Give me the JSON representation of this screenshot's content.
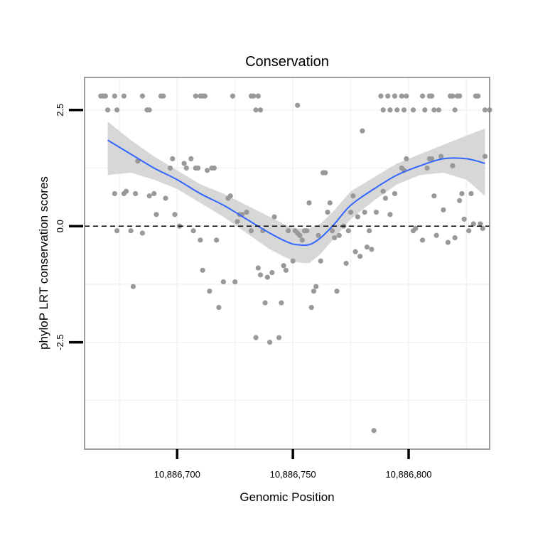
{
  "chart_data": {
    "type": "scatter",
    "title": "Conservation",
    "xlabel": "Genomic Position",
    "ylabel": "phyloP LRT conservation scores",
    "xlim": [
      10886660,
      10886835
    ],
    "ylim": [
      -4.8,
      3.2
    ],
    "x_ticks": [
      10886700,
      10886750,
      10886800
    ],
    "x_tick_labels": [
      "10,886,700",
      "10,886,750",
      "10,886,800"
    ],
    "y_ticks": [
      2.5,
      0.0,
      -2.5
    ],
    "y_tick_labels": [
      "2.5",
      "0.0",
      "-2.5"
    ],
    "reference_line": {
      "y": 0,
      "style": "dashed"
    },
    "grid": true,
    "colors": {
      "points": "#999999",
      "smooth_line": "#3366ff",
      "ribbon": "#d3d3d3",
      "border": "#7f7f7f"
    },
    "points": [
      [
        10886667,
        2.8
      ],
      [
        10886668,
        2.8
      ],
      [
        10886669,
        2.8
      ],
      [
        10886670,
        2.5
      ],
      [
        10886673,
        2.8
      ],
      [
        10886674,
        2.5
      ],
      [
        10886677,
        2.8
      ],
      [
        10886685,
        2.8
      ],
      [
        10886687,
        2.5
      ],
      [
        10886688,
        2.5
      ],
      [
        10886693,
        2.8
      ],
      [
        10886694,
        2.8
      ],
      [
        10886708,
        2.8
      ],
      [
        10886710,
        2.8
      ],
      [
        10886711,
        2.8
      ],
      [
        10886712,
        2.8
      ],
      [
        10886724,
        2.8
      ],
      [
        10886732,
        2.8
      ],
      [
        10886733,
        2.8
      ],
      [
        10886734,
        2.5
      ],
      [
        10886735,
        2.8
      ],
      [
        10886736,
        2.5
      ],
      [
        10886752,
        2.6
      ],
      [
        10886788,
        2.8
      ],
      [
        10886789,
        2.5
      ],
      [
        10886791,
        2.8
      ],
      [
        10886792,
        2.5
      ],
      [
        10886794,
        2.8
      ],
      [
        10886795,
        2.5
      ],
      [
        10886797,
        2.8
      ],
      [
        10886798,
        2.5
      ],
      [
        10886799,
        2.8
      ],
      [
        10886802,
        2.5
      ],
      [
        10886806,
        2.8
      ],
      [
        10886807,
        2.5
      ],
      [
        10886809,
        2.8
      ],
      [
        10886810,
        2.8
      ],
      [
        10886811,
        2.5
      ],
      [
        10886813,
        2.5
      ],
      [
        10886818,
        2.8
      ],
      [
        10886819,
        2.8
      ],
      [
        10886820,
        2.5
      ],
      [
        10886821,
        2.8
      ],
      [
        10886822,
        2.8
      ],
      [
        10886829,
        2.8
      ],
      [
        10886830,
        2.8
      ],
      [
        10886833,
        2.5
      ],
      [
        10886835,
        2.5
      ],
      [
        10886673,
        0.7
      ],
      [
        10886674,
        -0.1
      ],
      [
        10886677,
        0.7
      ],
      [
        10886678,
        0.75
      ],
      [
        10886680,
        -0.1
      ],
      [
        10886681,
        -1.3
      ],
      [
        10886682,
        0.7
      ],
      [
        10886683,
        1.4
      ],
      [
        10886685,
        -0.15
      ],
      [
        10886688,
        0.65
      ],
      [
        10886690,
        0.7
      ],
      [
        10886691,
        0.25
      ],
      [
        10886695,
        0.6
      ],
      [
        10886697,
        1.25
      ],
      [
        10886698,
        1.45
      ],
      [
        10886699,
        0.25
      ],
      [
        10886701,
        0.0
      ],
      [
        10886703,
        1.35
      ],
      [
        10886704,
        1.25
      ],
      [
        10886706,
        1.45
      ],
      [
        10886707,
        -0.1
      ],
      [
        10886708,
        1.25
      ],
      [
        10886709,
        1.25
      ],
      [
        10886710,
        -0.3
      ],
      [
        10886711,
        -0.95
      ],
      [
        10886713,
        1.2
      ],
      [
        10886714,
        -1.4
      ],
      [
        10886715,
        1.25
      ],
      [
        10886716,
        1.25
      ],
      [
        10886717,
        -0.3
      ],
      [
        10886718,
        -1.75
      ],
      [
        10886720,
        -1.2
      ],
      [
        10886722,
        0.6
      ],
      [
        10886723,
        0.65
      ],
      [
        10886725,
        -1.2
      ],
      [
        10886726,
        0.1
      ],
      [
        10886727,
        0.25
      ],
      [
        10886728,
        0.25
      ],
      [
        10886730,
        0.3
      ],
      [
        10886732,
        -0.1
      ],
      [
        10886734,
        -2.4
      ],
      [
        10886735,
        -0.9
      ],
      [
        10886736,
        -1.05
      ],
      [
        10886737,
        -0.1
      ],
      [
        10886738,
        -1.65
      ],
      [
        10886739,
        -1.1
      ],
      [
        10886740,
        -2.5
      ],
      [
        10886741,
        -1.0
      ],
      [
        10886742,
        0.2
      ],
      [
        10886744,
        -2.4
      ],
      [
        10886745,
        -1.65
      ],
      [
        10886746,
        -0.85
      ],
      [
        10886747,
        -0.95
      ],
      [
        10886748,
        -0.1
      ],
      [
        10886750,
        -0.75
      ],
      [
        10886751,
        -0.1
      ],
      [
        10886752,
        -0.15
      ],
      [
        10886753,
        -0.2
      ],
      [
        10886754,
        -0.3
      ],
      [
        10886755,
        -0.1
      ],
      [
        10886756,
        -0.1
      ],
      [
        10886757,
        0.5
      ],
      [
        10886758,
        -1.75
      ],
      [
        10886759,
        -1.4
      ],
      [
        10886760,
        -1.3
      ],
      [
        10886761,
        -0.2
      ],
      [
        10886762,
        -0.75
      ],
      [
        10886763,
        1.15
      ],
      [
        10886764,
        1.15
      ],
      [
        10886765,
        0.3
      ],
      [
        10886766,
        0.5
      ],
      [
        10886767,
        -0.1
      ],
      [
        10886768,
        -0.25
      ],
      [
        10886769,
        -1.4
      ],
      [
        10886770,
        -0.2
      ],
      [
        10886772,
        0.0
      ],
      [
        10886773,
        -0.8
      ],
      [
        10886774,
        -0.1
      ],
      [
        10886775,
        0.3
      ],
      [
        10886776,
        0.65
      ],
      [
        10886777,
        -0.55
      ],
      [
        10886778,
        0.2
      ],
      [
        10886779,
        -0.65
      ],
      [
        10886780,
        2.05
      ],
      [
        10886781,
        0.3
      ],
      [
        10886782,
        -0.45
      ],
      [
        10886783,
        -0.1
      ],
      [
        10886784,
        -0.5
      ],
      [
        10886785,
        -4.4
      ],
      [
        10886786,
        0.3
      ],
      [
        10886789,
        0.75
      ],
      [
        10886790,
        0.6
      ],
      [
        10886792,
        0.25
      ],
      [
        10886794,
        0.7
      ],
      [
        10886797,
        1.25
      ],
      [
        10886798,
        1.2
      ],
      [
        10886799,
        1.45
      ],
      [
        10886802,
        -0.1
      ],
      [
        10886803,
        -0.05
      ],
      [
        10886806,
        -0.3
      ],
      [
        10886808,
        1.25
      ],
      [
        10886809,
        1.45
      ],
      [
        10886810,
        1.45
      ],
      [
        10886811,
        0.65
      ],
      [
        10886812,
        -0.2
      ],
      [
        10886814,
        1.5
      ],
      [
        10886815,
        0.35
      ],
      [
        10886817,
        -0.35
      ],
      [
        10886819,
        1.3
      ],
      [
        10886820,
        -0.25
      ],
      [
        10886822,
        0.55
      ],
      [
        10886823,
        0.7
      ],
      [
        10886824,
        0.15
      ],
      [
        10886826,
        -0.1
      ],
      [
        10886827,
        0.7
      ],
      [
        10886828,
        0.05
      ],
      [
        10886831,
        0.05
      ],
      [
        10886832,
        -0.05
      ],
      [
        10886833,
        1.5
      ]
    ],
    "smooth": [
      [
        10886670,
        1.85
      ],
      [
        10886680,
        1.55
      ],
      [
        10886690,
        1.25
      ],
      [
        10886700,
        1.0
      ],
      [
        10886710,
        0.7
      ],
      [
        10886720,
        0.45
      ],
      [
        10886730,
        0.15
      ],
      [
        10886740,
        -0.15
      ],
      [
        10886748,
        -0.35
      ],
      [
        10886752,
        -0.4
      ],
      [
        10886757,
        -0.4
      ],
      [
        10886762,
        -0.25
      ],
      [
        10886768,
        0.05
      ],
      [
        10886775,
        0.45
      ],
      [
        10886785,
        0.8
      ],
      [
        10886795,
        1.1
      ],
      [
        10886805,
        1.3
      ],
      [
        10886815,
        1.45
      ],
      [
        10886825,
        1.45
      ],
      [
        10886833,
        1.35
      ]
    ],
    "ribbon_upper": [
      [
        10886670,
        2.25
      ],
      [
        10886680,
        1.85
      ],
      [
        10886690,
        1.5
      ],
      [
        10886700,
        1.2
      ],
      [
        10886710,
        0.9
      ],
      [
        10886720,
        0.7
      ],
      [
        10886730,
        0.45
      ],
      [
        10886740,
        0.2
      ],
      [
        10886748,
        0.0
      ],
      [
        10886752,
        -0.05
      ],
      [
        10886757,
        -0.05
      ],
      [
        10886762,
        0.05
      ],
      [
        10886768,
        0.35
      ],
      [
        10886775,
        0.75
      ],
      [
        10886785,
        1.05
      ],
      [
        10886795,
        1.35
      ],
      [
        10886805,
        1.55
      ],
      [
        10886815,
        1.75
      ],
      [
        10886825,
        1.95
      ],
      [
        10886833,
        2.1
      ]
    ],
    "ribbon_lower": [
      [
        10886670,
        1.1
      ],
      [
        10886680,
        1.15
      ],
      [
        10886690,
        1.0
      ],
      [
        10886700,
        0.8
      ],
      [
        10886710,
        0.5
      ],
      [
        10886720,
        0.2
      ],
      [
        10886730,
        -0.15
      ],
      [
        10886740,
        -0.5
      ],
      [
        10886748,
        -0.7
      ],
      [
        10886752,
        -0.78
      ],
      [
        10886757,
        -0.8
      ],
      [
        10886762,
        -0.6
      ],
      [
        10886768,
        -0.25
      ],
      [
        10886775,
        0.15
      ],
      [
        10886785,
        0.55
      ],
      [
        10886795,
        0.9
      ],
      [
        10886805,
        1.1
      ],
      [
        10886815,
        1.15
      ],
      [
        10886825,
        1.0
      ],
      [
        10886833,
        0.65
      ]
    ]
  }
}
